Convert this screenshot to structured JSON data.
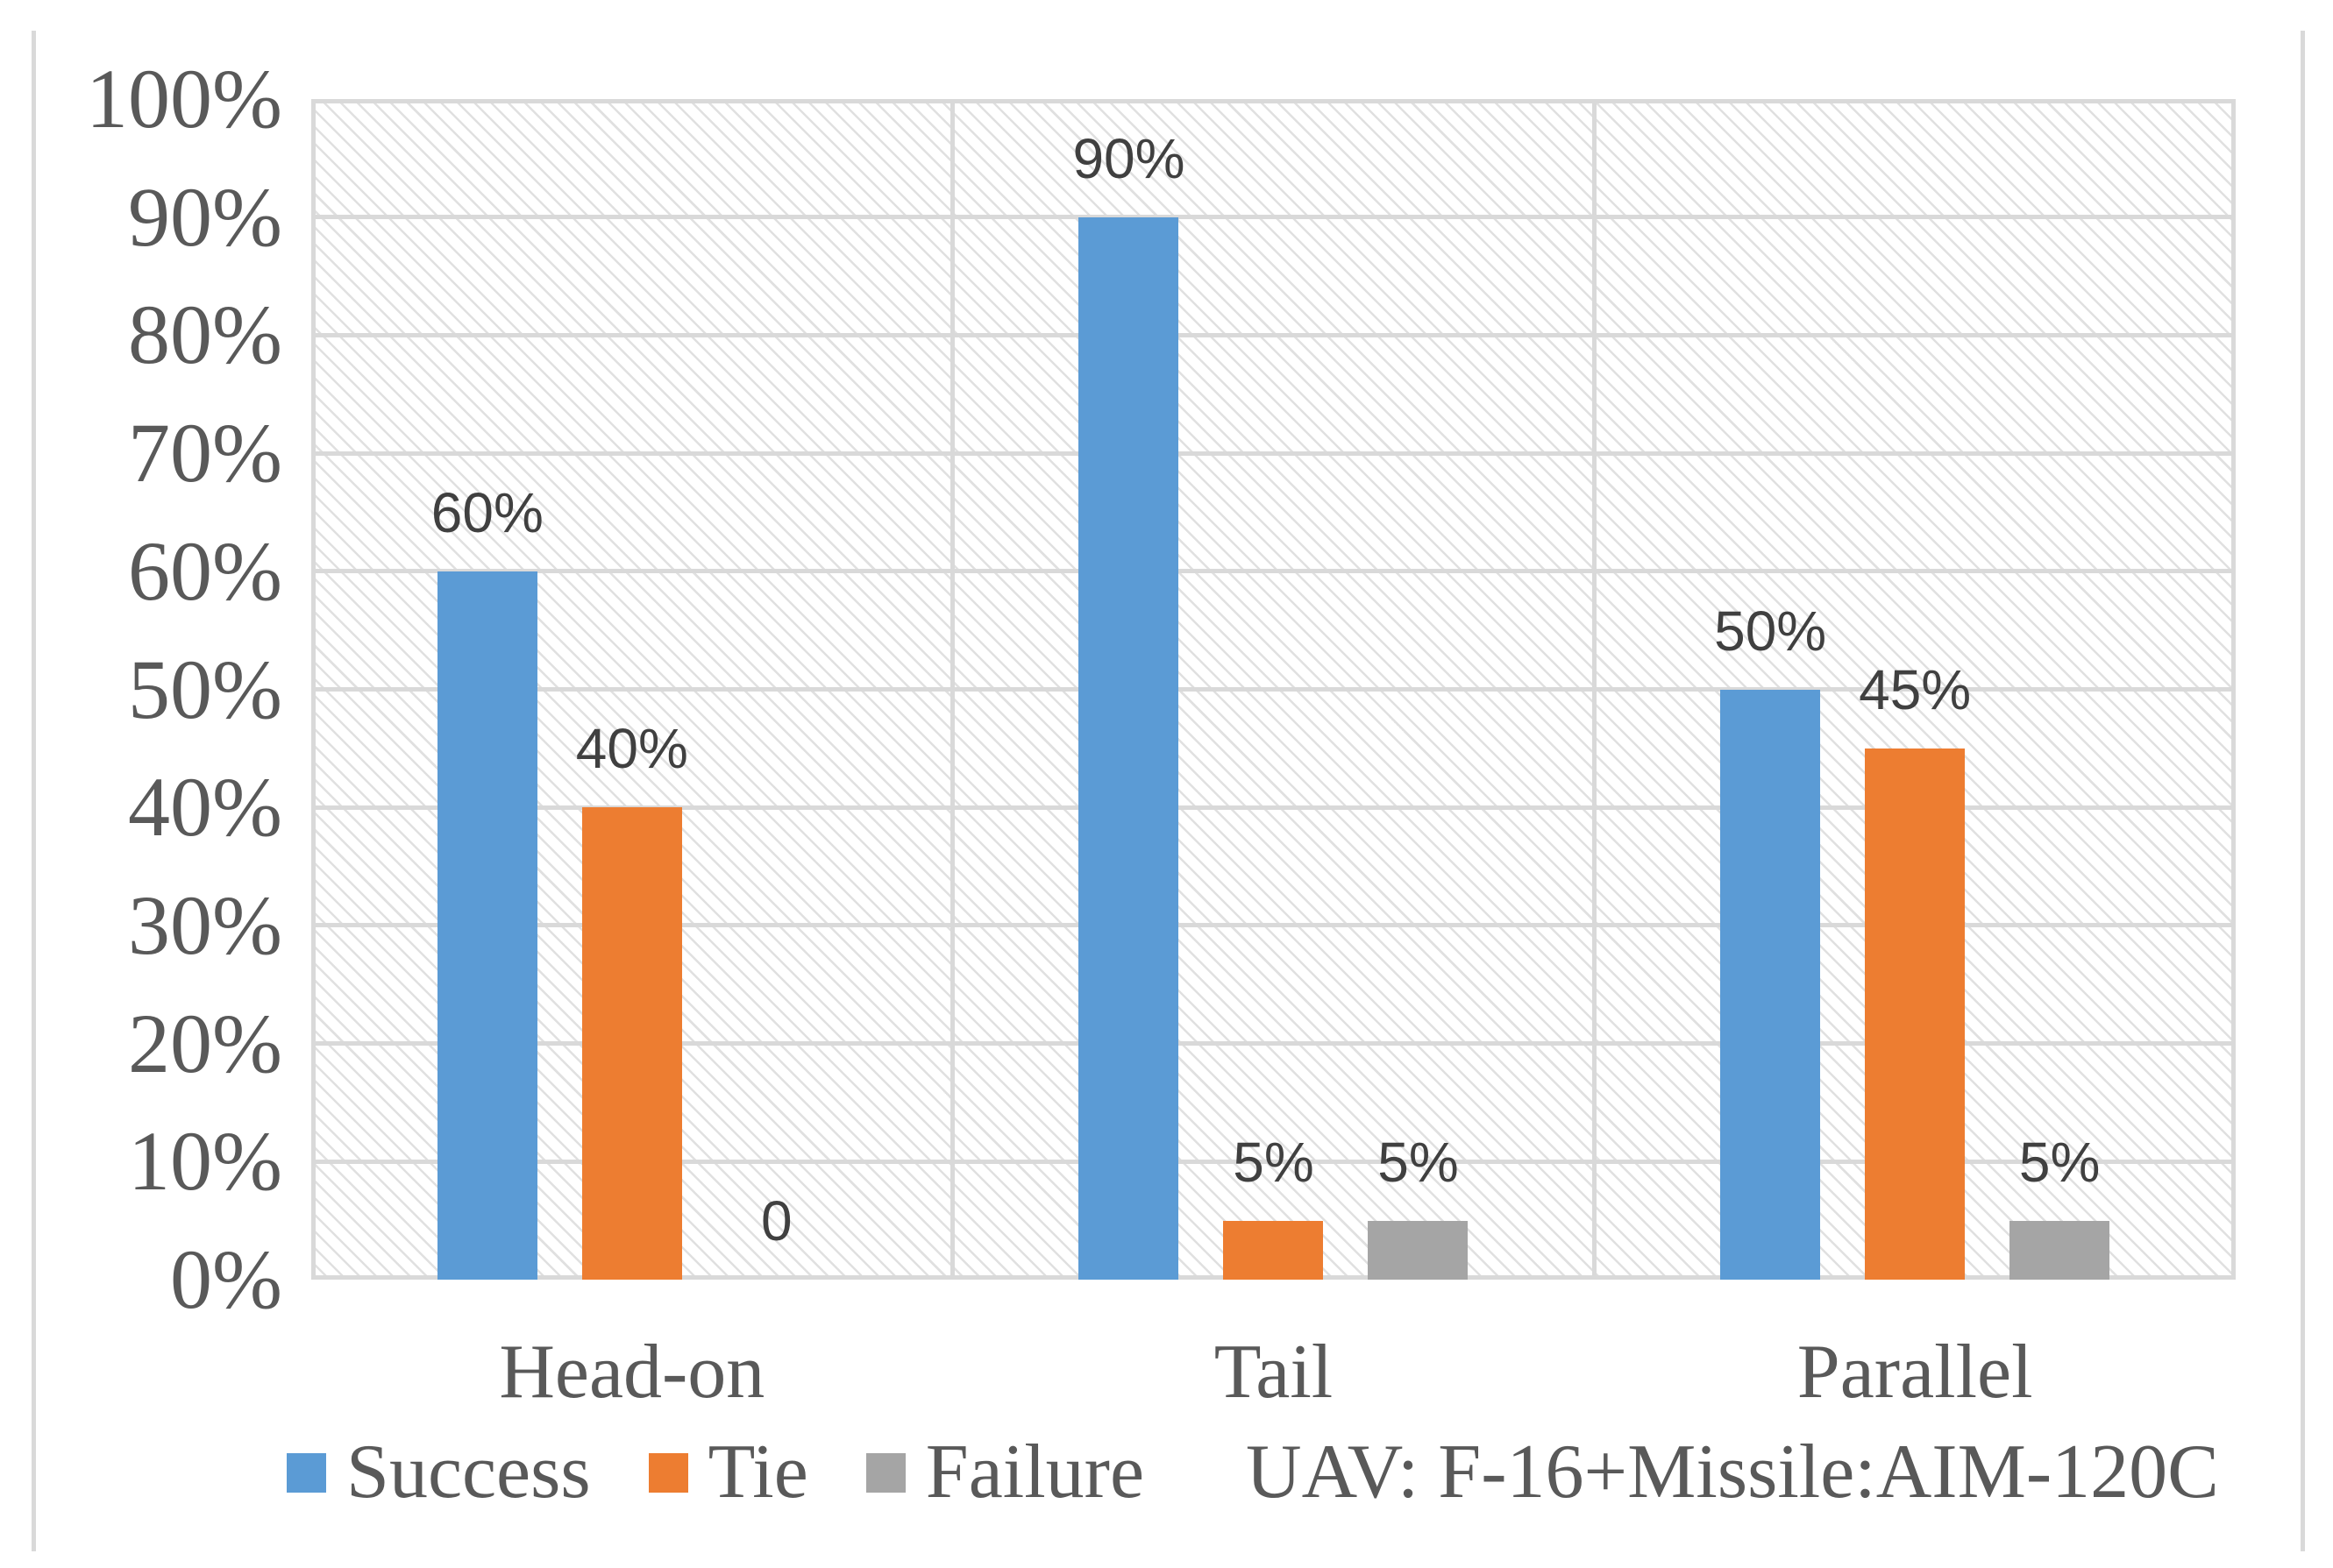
{
  "chart_data": {
    "type": "bar",
    "title": "",
    "categories": [
      "Head-on",
      "Tail",
      "Parallel"
    ],
    "series": [
      {
        "name": "Success",
        "color": "#5B9BD5",
        "values": [
          60,
          90,
          50
        ],
        "data_labels": [
          "60%",
          "90%",
          "50%"
        ]
      },
      {
        "name": "Tie",
        "color": "#ED7D31",
        "values": [
          40,
          5,
          45
        ],
        "data_labels": [
          "40%",
          "5%",
          "45%"
        ]
      },
      {
        "name": "Failure",
        "color": "#A5A5A5",
        "values": [
          0,
          5,
          5
        ],
        "data_labels": [
          "0",
          "5%",
          "5%"
        ]
      }
    ],
    "y_axis": {
      "min": 0,
      "max": 100,
      "step": 10,
      "tick_labels": [
        "0%",
        "10%",
        "20%",
        "30%",
        "40%",
        "50%",
        "60%",
        "70%",
        "80%",
        "90%",
        "100%"
      ]
    },
    "xlabel": "",
    "ylabel": "",
    "legend": {
      "position": "bottom",
      "entries": [
        "Success",
        "Tie",
        "Failure"
      ]
    },
    "annotation": "UAV: F-16+Missile:AIM-120C",
    "grid": {
      "horizontal": true,
      "vertical_section_dividers": true
    },
    "plot_background": "diagonal-hatch"
  },
  "styles": {
    "grid_color": "#D9D9D9",
    "frame_color": "#D9D9D9",
    "hatch_line_color": "#E0E0E0",
    "axis_text_color": "#595959",
    "data_label_color": "#404040",
    "background_color": "#FFFFFF"
  }
}
